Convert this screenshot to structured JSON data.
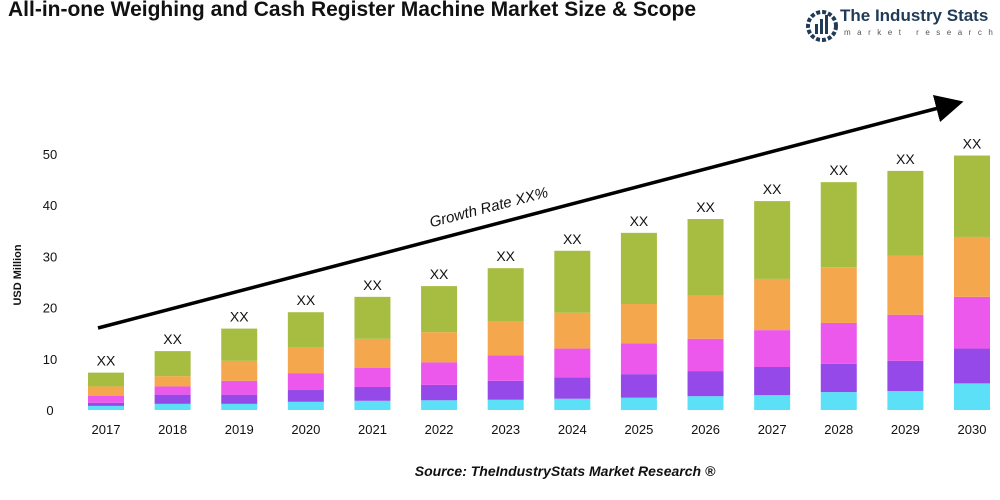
{
  "title": "All-in-one Weighing and Cash Register Machine Market Size & Scope",
  "logo": {
    "name": "The Industry Stats",
    "tagline": "market research"
  },
  "source": "Source: TheIndustryStats Market Research ®",
  "chart_data": {
    "type": "bar",
    "stacked": true,
    "title": "",
    "xlabel": "",
    "ylabel": "USD Million",
    "ylim": [
      0,
      50
    ],
    "yticks": [
      0,
      10,
      20,
      30,
      40,
      50
    ],
    "grid": false,
    "annotation": "Growth Rate XX%",
    "bar_label": "XX",
    "categories": [
      "2017",
      "2018",
      "2019",
      "2020",
      "2021",
      "2022",
      "2023",
      "2024",
      "2025",
      "2026",
      "2027",
      "2028",
      "2029",
      "2030"
    ],
    "series": [
      {
        "color": "#5ce0f7",
        "values": [
          0.8,
          1.2,
          1.2,
          1.6,
          1.8,
          1.9,
          2.0,
          2.2,
          2.4,
          2.7,
          2.9,
          3.5,
          3.7,
          5.2
        ]
      },
      {
        "color": "#9549e8",
        "values": [
          0.6,
          1.8,
          1.8,
          2.3,
          2.7,
          3.0,
          3.7,
          4.2,
          4.6,
          4.9,
          5.5,
          5.5,
          5.9,
          6.8
        ]
      },
      {
        "color": "#ec57ec",
        "values": [
          1.4,
          1.6,
          2.7,
          3.3,
          3.7,
          4.4,
          5.0,
          5.6,
          6.0,
          6.3,
          7.2,
          8.0,
          9.0,
          10.1
        ]
      },
      {
        "color": "#f4a74c",
        "values": [
          1.8,
          2.0,
          3.9,
          5.1,
          5.7,
          5.9,
          6.6,
          7.0,
          7.7,
          8.4,
          10.0,
          10.9,
          11.5,
          11.7
        ]
      },
      {
        "color": "#a6bd42",
        "values": [
          2.7,
          4.9,
          6.3,
          6.8,
          8.2,
          9.0,
          10.4,
          12.1,
          13.9,
          15.0,
          15.2,
          16.6,
          16.6,
          15.9
        ]
      }
    ]
  }
}
